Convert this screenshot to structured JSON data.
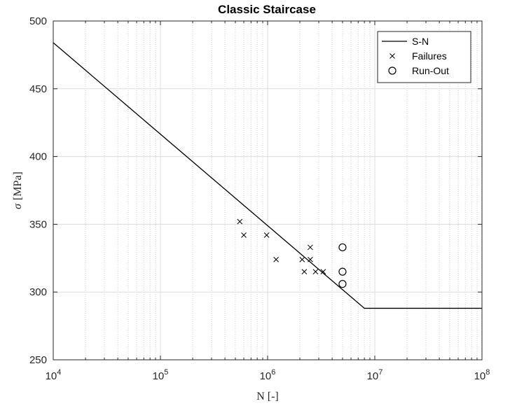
{
  "chart_data": {
    "type": "scatter",
    "title": "Classic Staircase",
    "xlabel": "N [-]",
    "ylabel_symbol": "σ",
    "ylabel_unit": "[MPa]",
    "xscale": "log",
    "xlim": [
      10000,
      100000000
    ],
    "ylim": [
      250,
      500
    ],
    "x_ticks": [
      10000,
      100000,
      1000000,
      10000000,
      100000000
    ],
    "x_tick_labels": [
      {
        "base": "10",
        "exp": "4"
      },
      {
        "base": "10",
        "exp": "5"
      },
      {
        "base": "10",
        "exp": "6"
      },
      {
        "base": "10",
        "exp": "7"
      },
      {
        "base": "10",
        "exp": "8"
      }
    ],
    "y_ticks": [
      250,
      300,
      350,
      400,
      450,
      500
    ],
    "y_tick_labels": [
      "250",
      "300",
      "350",
      "400",
      "450",
      "500"
    ],
    "grid": true,
    "legend_position": "top-right",
    "series": [
      {
        "name": "S-N",
        "style": "line",
        "color": "#000000",
        "points": [
          [
            10000,
            484
          ],
          [
            8000000,
            288
          ],
          [
            100000000,
            288
          ]
        ]
      },
      {
        "name": "Failures",
        "style": "x-marker",
        "color": "#000000",
        "points": [
          [
            550000,
            352
          ],
          [
            600000,
            342
          ],
          [
            980000,
            342
          ],
          [
            1200000,
            324
          ],
          [
            2100000,
            324
          ],
          [
            2200000,
            315
          ],
          [
            2500000,
            333
          ],
          [
            2500000,
            324
          ],
          [
            2800000,
            315
          ],
          [
            3300000,
            315
          ]
        ]
      },
      {
        "name": "Run-Out",
        "style": "circle-marker",
        "color": "#000000",
        "points": [
          [
            5000000,
            333
          ],
          [
            5000000,
            315
          ],
          [
            5000000,
            306
          ]
        ]
      }
    ]
  }
}
